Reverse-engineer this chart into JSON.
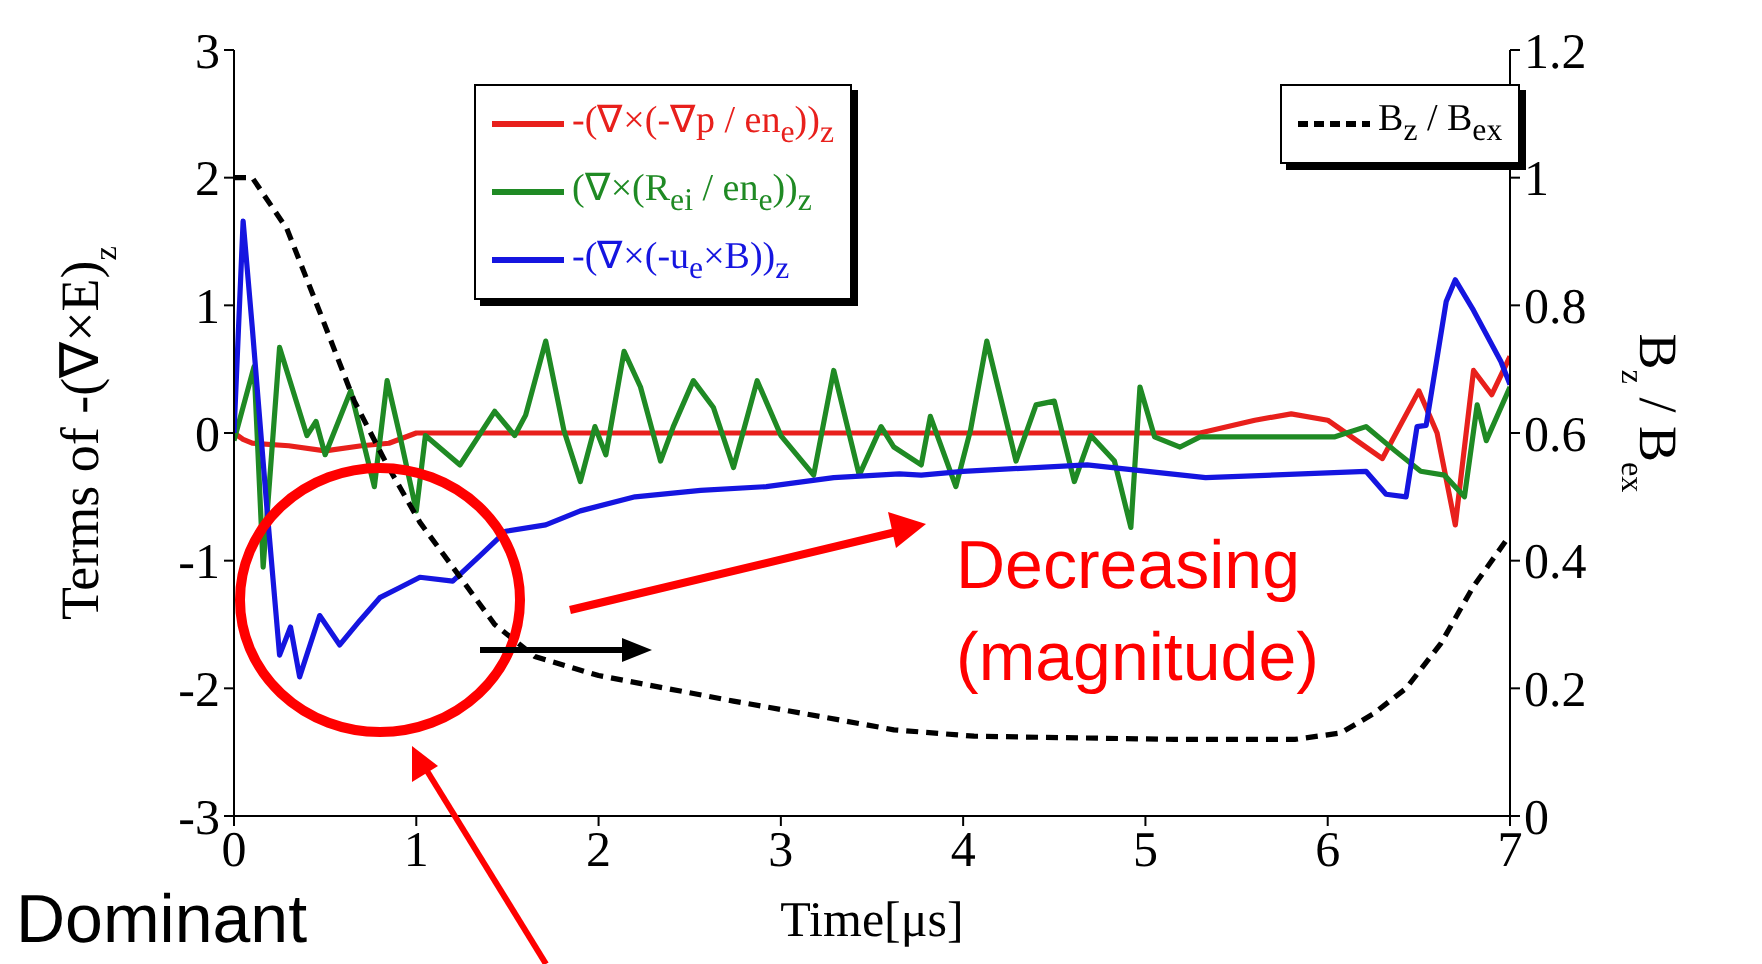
{
  "chart_data": {
    "type": "line",
    "xlabel": "Time[μs]",
    "ylabel": "Terms of -(∇×E)$_{z}$",
    "y2label": "B$_{z}$ / B$_{ex}$",
    "xlim": [
      0,
      7
    ],
    "xticks": [
      0,
      1,
      2,
      3,
      4,
      5,
      6,
      7
    ],
    "ylim": [
      -3,
      3
    ],
    "yticks": [
      -3,
      -2,
      -1,
      0,
      1,
      2,
      3
    ],
    "y2lim": [
      0,
      1.2
    ],
    "y2ticks": [
      0,
      0.2,
      0.4,
      0.6,
      0.8,
      1,
      1.2
    ],
    "legend": "top",
    "marker": "none",
    "annotations": [
      "Decreasing (magnitude)",
      "Dominant"
    ],
    "series": [
      {
        "name": "-(∇×(-∇p / en$_{e}$))$_{z}$",
        "color": "#e8201c",
        "x": [
          0,
          0.05,
          0.1,
          0.3,
          0.5,
          0.7,
          0.85,
          1.0,
          1.5,
          2,
          3,
          4,
          5,
          5.3,
          5.6,
          5.8,
          6.0,
          6.1,
          6.3,
          6.5,
          6.6,
          6.7,
          6.8,
          6.9,
          7
        ],
        "values": [
          0,
          -0.05,
          -0.08,
          -0.1,
          -0.14,
          -0.1,
          -0.08,
          0,
          0,
          0,
          0,
          0,
          0,
          0,
          0.1,
          0.15,
          0.1,
          0,
          -0.2,
          0.33,
          0,
          -0.72,
          0.49,
          0.3,
          0.6
        ]
      },
      {
        "name": "(∇×(R$_{ei}$ / en$_{e}$))$_{z}$",
        "color": "#1f8a24",
        "x": [
          0,
          0.11,
          0.16,
          0.25,
          0.4,
          0.45,
          0.5,
          0.64,
          0.77,
          0.84,
          0.91,
          1.0,
          1.05,
          1.24,
          1.43,
          1.54,
          1.6,
          1.71,
          1.81,
          1.9,
          1.98,
          2.04,
          2.14,
          2.23,
          2.34,
          2.41,
          2.52,
          2.63,
          2.74,
          2.87,
          3.0,
          3.18,
          3.29,
          3.43,
          3.55,
          3.62,
          3.77,
          3.82,
          3.96,
          4.04,
          4.13,
          4.29,
          4.4,
          4.5,
          4.61,
          4.7,
          4.83,
          4.92,
          4.97,
          5.05,
          5.19,
          5.3,
          6.04,
          6.21,
          6.37,
          6.51,
          6.64,
          6.75,
          6.82,
          6.87,
          7.0
        ],
        "values": [
          -0.06,
          0.52,
          -1.05,
          0.67,
          -0.02,
          0.09,
          -0.17,
          0.33,
          -0.42,
          0.41,
          -0.02,
          -0.61,
          -0.02,
          -0.25,
          0.17,
          -0.02,
          0.14,
          0.72,
          0.02,
          -0.38,
          0.05,
          -0.17,
          0.64,
          0.36,
          -0.22,
          0.05,
          0.41,
          0.2,
          -0.27,
          0.41,
          -0.02,
          -0.33,
          0.49,
          -0.33,
          0.05,
          -0.11,
          -0.25,
          0.13,
          -0.42,
          0.02,
          0.72,
          -0.22,
          0.22,
          0.25,
          -0.38,
          -0.02,
          -0.22,
          -0.74,
          0.36,
          -0.03,
          -0.11,
          -0.03,
          -0.03,
          0.05,
          -0.14,
          -0.3,
          -0.33,
          -0.5,
          0.22,
          -0.06,
          0.36
        ]
      },
      {
        "name": "-(∇×(-u$_{e}$×B))$_{z}$",
        "color": "#1515e0",
        "x": [
          0,
          0.05,
          0.1,
          0.18,
          0.25,
          0.31,
          0.36,
          0.47,
          0.58,
          0.69,
          0.8,
          0.91,
          1.02,
          1.2,
          1.35,
          1.49,
          1.71,
          1.9,
          2.2,
          2.56,
          2.92,
          3.29,
          3.65,
          3.77,
          4.0,
          4.68,
          5.33,
          6.21,
          6.32,
          6.43,
          6.49,
          6.54,
          6.65,
          6.7,
          6.8,
          6.95,
          7
        ],
        "values": [
          0,
          1.66,
          0.83,
          -0.58,
          -1.74,
          -1.52,
          -1.91,
          -1.43,
          -1.66,
          -1.47,
          -1.29,
          -1.21,
          -1.13,
          -1.16,
          -0.96,
          -0.77,
          -0.72,
          -0.61,
          -0.5,
          -0.45,
          -0.42,
          -0.35,
          -0.32,
          -0.33,
          -0.3,
          -0.25,
          -0.35,
          -0.3,
          -0.48,
          -0.5,
          0.05,
          0.06,
          1.03,
          1.2,
          0.96,
          0.56,
          0.38
        ]
      },
      {
        "name": "B$_{z}$ / B$_{ex}$",
        "color": "#000000",
        "axis": "y2",
        "line_style": "dashed",
        "x": [
          0,
          0.1,
          0.29,
          0.47,
          0.66,
          0.84,
          1.02,
          1.2,
          1.43,
          1.65,
          2.0,
          2.74,
          3.33,
          3.62,
          4.06,
          5.16,
          5.82,
          6.07,
          6.25,
          6.43,
          6.62,
          6.8,
          7
        ],
        "values": [
          1.0,
          1.0,
          0.92,
          0.79,
          0.65,
          0.55,
          0.46,
          0.39,
          0.3,
          0.25,
          0.22,
          0.18,
          0.15,
          0.135,
          0.125,
          0.12,
          0.12,
          0.13,
          0.16,
          0.2,
          0.27,
          0.36,
          0.44
        ]
      }
    ]
  }
}
